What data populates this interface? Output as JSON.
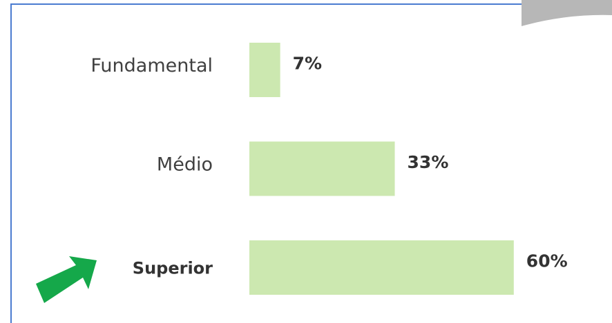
{
  "chart_data": {
    "type": "bar",
    "orientation": "horizontal",
    "categories": [
      "Fundamental",
      "Médio",
      "Superior"
    ],
    "values": [
      7,
      33,
      60
    ],
    "value_labels": [
      "7%",
      "33%",
      "60%"
    ],
    "color": "#cce8b0",
    "highlight": 2
  }
}
